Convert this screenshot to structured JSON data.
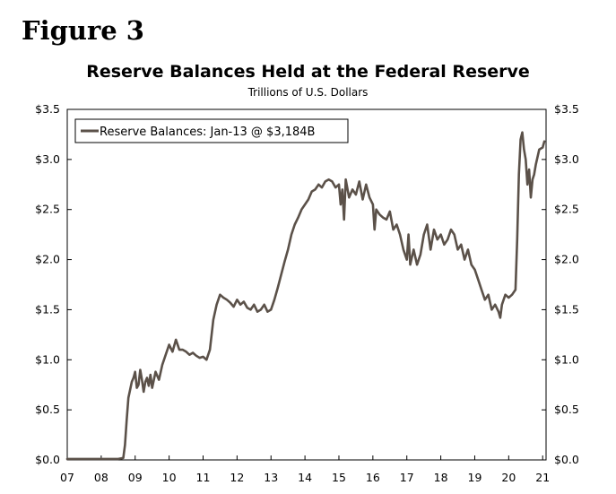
{
  "figure_label": "Figure 3",
  "chart_data": {
    "type": "line",
    "title": "Reserve Balances Held at the Federal Reserve",
    "subtitle": "Trillions of U.S. Dollars",
    "xlabel": "",
    "ylabel": "",
    "x_tick_labels": [
      "07",
      "08",
      "09",
      "10",
      "11",
      "12",
      "13",
      "14",
      "15",
      "16",
      "17",
      "18",
      "19",
      "20",
      "21"
    ],
    "xlim": [
      2007.0,
      2021.1
    ],
    "ylim": [
      0,
      3.5
    ],
    "y_ticks": [
      0,
      0.5,
      1.0,
      1.5,
      2.0,
      2.5,
      3.0,
      3.5
    ],
    "y_tick_labels": [
      "$0.0",
      "$0.5",
      "$1.0",
      "$1.5",
      "$2.0",
      "$2.5",
      "$3.0",
      "$3.5"
    ],
    "grid": false,
    "legend_position": "top-left",
    "series": [
      {
        "name": "Reserve Balances: Jan-13 @ $3,184B",
        "color": "#5b5149",
        "x": [
          2007.0,
          2007.5,
          2008.0,
          2008.5,
          2008.65,
          2008.7,
          2008.75,
          2008.8,
          2008.85,
          2008.9,
          2008.95,
          2009.0,
          2009.05,
          2009.1,
          2009.15,
          2009.2,
          2009.25,
          2009.3,
          2009.35,
          2009.4,
          2009.45,
          2009.5,
          2009.6,
          2009.7,
          2009.8,
          2009.9,
          2010.0,
          2010.1,
          2010.2,
          2010.3,
          2010.4,
          2010.5,
          2010.6,
          2010.7,
          2010.8,
          2010.9,
          2011.0,
          2011.1,
          2011.2,
          2011.3,
          2011.4,
          2011.5,
          2011.6,
          2011.7,
          2011.8,
          2011.9,
          2012.0,
          2012.1,
          2012.2,
          2012.3,
          2012.4,
          2012.5,
          2012.6,
          2012.7,
          2012.8,
          2012.9,
          2013.0,
          2013.1,
          2013.2,
          2013.3,
          2013.4,
          2013.5,
          2013.6,
          2013.7,
          2013.8,
          2013.9,
          2014.0,
          2014.1,
          2014.2,
          2014.3,
          2014.4,
          2014.5,
          2014.6,
          2014.7,
          2014.8,
          2014.9,
          2015.0,
          2015.05,
          2015.1,
          2015.15,
          2015.2,
          2015.3,
          2015.4,
          2015.5,
          2015.6,
          2015.7,
          2015.8,
          2015.9,
          2016.0,
          2016.05,
          2016.1,
          2016.2,
          2016.3,
          2016.4,
          2016.5,
          2016.6,
          2016.7,
          2016.8,
          2016.9,
          2017.0,
          2017.05,
          2017.1,
          2017.2,
          2017.3,
          2017.4,
          2017.5,
          2017.6,
          2017.7,
          2017.8,
          2017.9,
          2018.0,
          2018.1,
          2018.2,
          2018.3,
          2018.4,
          2018.5,
          2018.6,
          2018.7,
          2018.8,
          2018.9,
          2019.0,
          2019.1,
          2019.2,
          2019.3,
          2019.4,
          2019.5,
          2019.6,
          2019.7,
          2019.75,
          2019.8,
          2019.9,
          2020.0,
          2020.1,
          2020.2,
          2020.25,
          2020.3,
          2020.35,
          2020.4,
          2020.45,
          2020.5,
          2020.55,
          2020.6,
          2020.65,
          2020.7,
          2020.75,
          2020.8,
          2020.9,
          2021.0,
          2021.05
        ],
        "values": [
          0.01,
          0.01,
          0.01,
          0.01,
          0.02,
          0.15,
          0.4,
          0.62,
          0.7,
          0.78,
          0.82,
          0.88,
          0.72,
          0.75,
          0.9,
          0.8,
          0.68,
          0.78,
          0.82,
          0.74,
          0.85,
          0.72,
          0.88,
          0.8,
          0.95,
          1.05,
          1.15,
          1.08,
          1.2,
          1.1,
          1.1,
          1.08,
          1.05,
          1.07,
          1.04,
          1.02,
          1.03,
          1.0,
          1.1,
          1.4,
          1.55,
          1.65,
          1.62,
          1.6,
          1.57,
          1.53,
          1.6,
          1.55,
          1.58,
          1.52,
          1.5,
          1.55,
          1.48,
          1.5,
          1.55,
          1.48,
          1.5,
          1.6,
          1.72,
          1.85,
          1.98,
          2.1,
          2.25,
          2.35,
          2.42,
          2.5,
          2.55,
          2.6,
          2.68,
          2.7,
          2.75,
          2.72,
          2.78,
          2.8,
          2.78,
          2.72,
          2.75,
          2.55,
          2.7,
          2.4,
          2.8,
          2.62,
          2.7,
          2.65,
          2.78,
          2.6,
          2.75,
          2.62,
          2.55,
          2.3,
          2.5,
          2.45,
          2.42,
          2.4,
          2.48,
          2.3,
          2.35,
          2.25,
          2.1,
          2.0,
          2.25,
          1.95,
          2.1,
          1.95,
          2.05,
          2.25,
          2.35,
          2.1,
          2.3,
          2.2,
          2.25,
          2.15,
          2.2,
          2.3,
          2.25,
          2.1,
          2.15,
          2.0,
          2.1,
          1.95,
          1.9,
          1.8,
          1.7,
          1.6,
          1.65,
          1.5,
          1.55,
          1.48,
          1.42,
          1.55,
          1.65,
          1.62,
          1.65,
          1.7,
          2.2,
          2.85,
          3.2,
          3.27,
          3.1,
          3.0,
          2.75,
          2.9,
          2.62,
          2.8,
          2.85,
          2.95,
          3.1,
          3.12,
          3.18
        ]
      }
    ]
  }
}
